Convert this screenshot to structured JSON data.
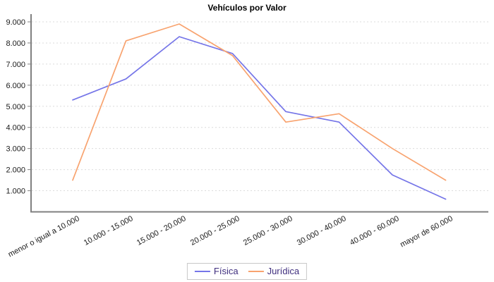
{
  "chart_data": {
    "type": "line",
    "title": "Vehículos por Valor",
    "categories": [
      "menor o igual a 10.000",
      "10.000 - 15.000",
      "15.000 - 20.000",
      "20.000 - 25.000",
      "25.000 - 30.000",
      "30.000 - 40.000",
      "40.000 - 60.000",
      "mayor de 60.000"
    ],
    "series": [
      {
        "name": "Física",
        "color": "#7575E8",
        "values": [
          5300,
          6300,
          8300,
          7500,
          4750,
          4250,
          1750,
          600
        ]
      },
      {
        "name": "Jurídica",
        "color": "#F8A36F",
        "values": [
          1500,
          8100,
          8900,
          7400,
          4250,
          4650,
          3000,
          1500
        ]
      }
    ],
    "ylim": [
      0,
      9000
    ],
    "yticks": [
      {
        "value": 1000,
        "label": "1.000"
      },
      {
        "value": 2000,
        "label": "2.000"
      },
      {
        "value": 3000,
        "label": "3.000"
      },
      {
        "value": 4000,
        "label": "4.000"
      },
      {
        "value": 5000,
        "label": "5.000"
      },
      {
        "value": 6000,
        "label": "6.000"
      },
      {
        "value": 7000,
        "label": "7.000"
      },
      {
        "value": 8000,
        "label": "8.000"
      },
      {
        "value": 9000,
        "label": "9.000"
      }
    ],
    "grid": "horizontal-dashed",
    "legend_position": "bottom"
  },
  "colors": {
    "axis": "#808080",
    "gridline": "#DBDBDB",
    "tick_label": "#1a1a1a",
    "legend_text": "#3F2E7E",
    "background": "#FFFFFF"
  }
}
